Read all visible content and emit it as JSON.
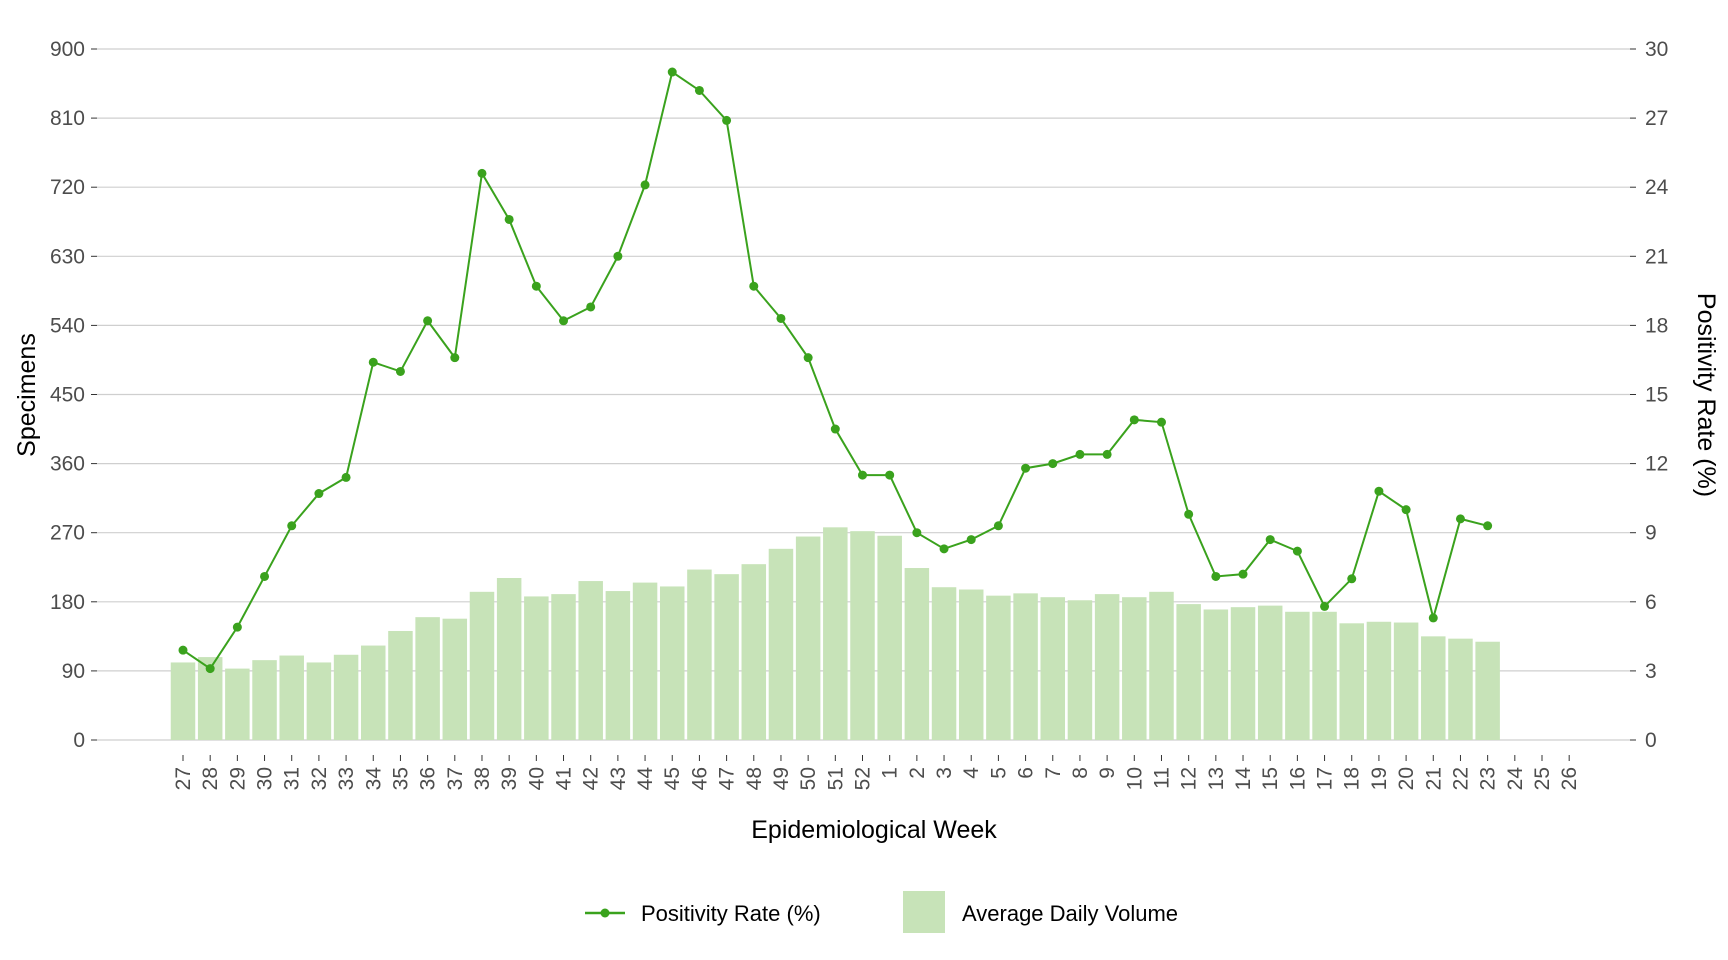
{
  "chart_data": {
    "type": "bar",
    "categories": [
      "27",
      "28",
      "29",
      "30",
      "31",
      "32",
      "33",
      "34",
      "35",
      "36",
      "37",
      "38",
      "39",
      "40",
      "41",
      "42",
      "43",
      "44",
      "45",
      "46",
      "47",
      "48",
      "49",
      "50",
      "51",
      "52",
      "1",
      "2",
      "3",
      "4",
      "5",
      "6",
      "7",
      "8",
      "9",
      "10",
      "11",
      "12",
      "13",
      "14",
      "15",
      "16",
      "17",
      "18",
      "19",
      "20",
      "21",
      "22",
      "23",
      "24",
      "25",
      "26"
    ],
    "series": [
      {
        "name": "Average Daily Volume",
        "type": "bar",
        "axis": "left",
        "values": [
          101,
          108,
          93,
          104,
          110,
          101,
          111,
          123,
          142,
          160,
          158,
          193,
          211,
          187,
          190,
          207,
          194,
          205,
          200,
          222,
          216,
          229,
          249,
          265,
          277,
          272,
          266,
          224,
          199,
          196,
          188,
          191,
          186,
          182,
          190,
          186,
          193,
          177,
          170,
          173,
          175,
          167,
          167,
          152,
          154,
          153,
          135,
          132,
          128,
          null,
          null,
          null
        ]
      },
      {
        "name": "Positivity Rate (%)",
        "type": "line",
        "axis": "right",
        "values": [
          3.9,
          3.1,
          4.9,
          7.1,
          9.3,
          10.7,
          11.4,
          16.4,
          16.0,
          18.2,
          16.6,
          24.6,
          22.6,
          19.7,
          18.2,
          18.8,
          21.0,
          24.1,
          29.0,
          28.2,
          26.9,
          19.7,
          18.3,
          16.6,
          13.5,
          11.5,
          11.5,
          9.0,
          8.3,
          8.7,
          9.3,
          11.8,
          12.0,
          12.4,
          12.4,
          13.9,
          13.8,
          9.8,
          7.1,
          7.2,
          8.7,
          8.2,
          5.8,
          7.0,
          10.8,
          10.0,
          5.3,
          9.6,
          9.3,
          null,
          null,
          null
        ]
      }
    ],
    "xlabel": "Epidemiological Week",
    "ylabel": "Specimens",
    "y2label": "Positivity Rate (%)",
    "ylim": [
      0,
      900
    ],
    "y2lim": [
      0,
      30
    ],
    "yticks": [
      "0",
      "90",
      "180",
      "270",
      "360",
      "450",
      "540",
      "630",
      "720",
      "810",
      "900"
    ],
    "y2ticks": [
      "0",
      "3",
      "6",
      "9",
      "12",
      "15",
      "18",
      "21",
      "24",
      "27",
      "30"
    ],
    "grid": true,
    "legend_position": "bottom",
    "colors": {
      "bar": "#c7e3b8",
      "line": "#3aa21d",
      "grid": "#cfcfcf",
      "tick_text": "#4d4d4d"
    }
  }
}
